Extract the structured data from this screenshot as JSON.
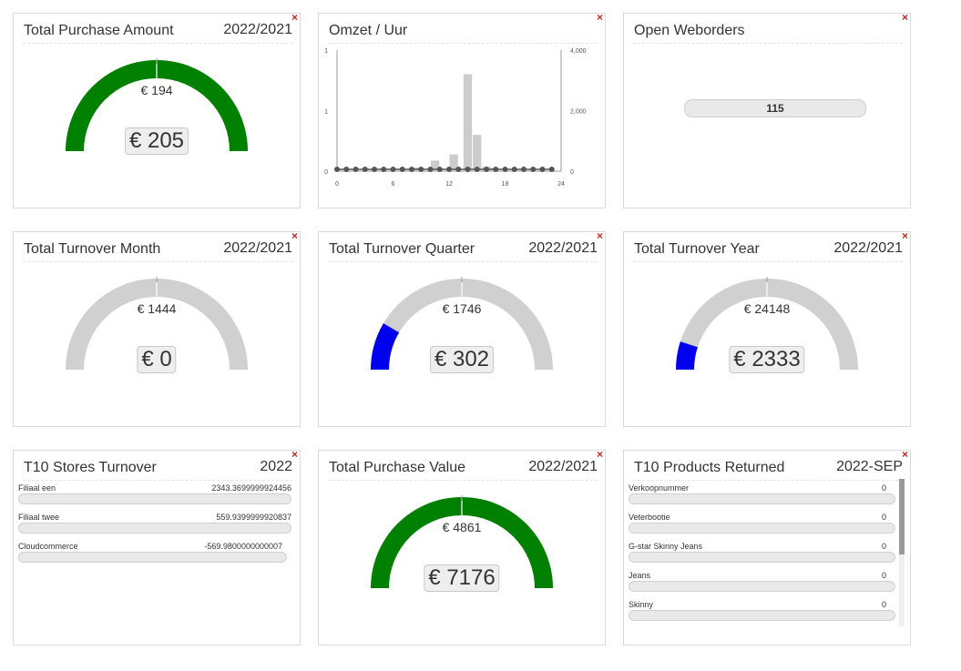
{
  "widgets": {
    "purchase_amount": {
      "title": "Total Purchase Amount",
      "period": "2022/2021",
      "target": "€ 194",
      "value": "€ 205",
      "fill": 1.0,
      "color": "#008000"
    },
    "omzet_uur": {
      "title": "Omzet / Uur"
    },
    "open_weborders": {
      "title": "Open Weborders",
      "value": "115"
    },
    "turnover_month": {
      "title": "Total Turnover Month",
      "period": "2022/2021",
      "target": "€ 1444",
      "value": "€ 0",
      "fill": 0.0,
      "color": "#0000ee"
    },
    "turnover_quarter": {
      "title": "Total Turnover Quarter",
      "period": "2022/2021",
      "target": "€ 1746",
      "value": "€ 302",
      "fill": 0.17,
      "color": "#0000ee"
    },
    "turnover_year": {
      "title": "Total Turnover Year",
      "period": "2022/2021",
      "target": "€ 24148",
      "value": "€ 2333",
      "fill": 0.1,
      "color": "#0000ee"
    },
    "stores_turnover": {
      "title": "T10 Stores Turnover",
      "period": "2022",
      "items": [
        {
          "label": "Filiaal een",
          "value": "2343.3699999924456"
        },
        {
          "label": "Filiaal twee",
          "value": "559.9399999920837"
        },
        {
          "label": "Cloudcommerce",
          "value": "-569.9800000000007"
        }
      ]
    },
    "purchase_value": {
      "title": "Total Purchase Value",
      "period": "2022/2021",
      "target": "€ 4861",
      "value": "€ 7176",
      "fill": 1.0,
      "color": "#008000"
    },
    "products_returned": {
      "title": "T10 Products Returned",
      "period": "2022-SEP",
      "items": [
        {
          "label": "Verkoopnummer",
          "value": "0"
        },
        {
          "label": "Veterbootie",
          "value": "0"
        },
        {
          "label": "G-star Skinny Jeans",
          "value": "0"
        },
        {
          "label": "Jeans",
          "value": "0"
        },
        {
          "label": "Skinny",
          "value": "0"
        }
      ]
    }
  },
  "close_glyph": "×",
  "chart_data": {
    "type": "bar",
    "title": "Omzet / Uur",
    "x": [
      0,
      1,
      2,
      3,
      4,
      5,
      6,
      7,
      8,
      9,
      10,
      11,
      12,
      13,
      14,
      15,
      16,
      17,
      18,
      19,
      20,
      21,
      22,
      23
    ],
    "values": [
      0,
      0,
      0,
      0,
      0,
      0,
      0,
      0,
      0,
      0,
      0,
      0,
      0,
      0,
      3200,
      1200,
      150,
      0,
      0,
      0,
      0,
      0,
      0,
      0
    ],
    "values_rounded_note": "",
    "x_ticks": [
      "0",
      "6",
      "12",
      "18",
      "24"
    ],
    "y_left_ticks": [
      "0",
      "1",
      "1"
    ],
    "y_right_ticks": [
      "0",
      "2,000",
      "4,000"
    ],
    "xlim": [
      0,
      24
    ],
    "ylim_right": [
      0,
      4000
    ],
    "line_values": [
      0,
      0,
      0,
      0,
      0,
      0,
      0,
      0,
      0,
      0,
      0,
      0,
      0,
      0,
      0,
      0,
      0,
      0,
      0,
      0,
      0,
      0,
      0,
      0
    ],
    "bar_color": "#cccccc",
    "line_color": "#555555"
  }
}
